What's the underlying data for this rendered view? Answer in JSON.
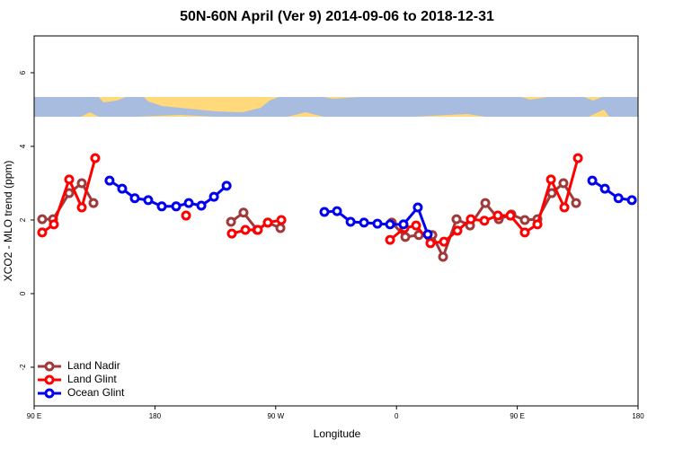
{
  "chart_data": {
    "type": "line",
    "title": "50N-60N April (Ver 9)   2014-09-06 to 2018-12-31",
    "x_label": "Longitude",
    "y_label": "XCO2 - MLO trend (ppm)",
    "xlim": [
      90,
      540
    ],
    "ylim": [
      -3.05,
      7
    ],
    "xticks": [
      {
        "value": 90,
        "label": "90 E"
      },
      {
        "value": 180,
        "label": "180"
      },
      {
        "value": 270,
        "label": "90 W"
      },
      {
        "value": 360,
        "label": "0"
      },
      {
        "value": 450,
        "label": "90 E"
      },
      {
        "value": 540,
        "label": "180"
      }
    ],
    "yticks": [
      -2,
      0,
      2,
      4,
      6
    ],
    "legend": "bottom-left",
    "series": [
      {
        "name": "Land Nadir",
        "color": "#a03a3a",
        "x": [
          96.0,
          104.1,
          116.1,
          125.5,
          134.2,
          null,
          236.7,
          246.0,
          256.1,
          264.1,
          273.5,
          null,
          356.5,
          366.6,
          376.6,
          386.7,
          394.7,
          404.7,
          414.8,
          426.2,
          436.2,
          445.6,
          455.6,
          465.0,
          475.7,
          484.4,
          493.8
        ],
        "values": [
          2.02,
          2.02,
          2.73,
          3.0,
          2.46,
          null,
          1.95,
          2.2,
          1.73,
          1.93,
          1.78,
          null,
          1.93,
          1.54,
          1.59,
          1.59,
          1.0,
          2.02,
          1.85,
          2.46,
          2.02,
          2.15,
          2.0,
          2.02,
          2.73,
          3.0,
          2.46
        ]
      },
      {
        "name": "Land Glint",
        "color": "#ff0000",
        "x": [
          96.0,
          104.7,
          116.1,
          125.5,
          135.5,
          null,
          203.2,
          null,
          237.3,
          247.4,
          256.7,
          264.1,
          274.2,
          null,
          355.2,
          365.9,
          374.6,
          385.3,
          395.4,
          405.4,
          415.4,
          425.5,
          435.5,
          444.9,
          455.6,
          465.0,
          475.1,
          485.1,
          495.2
        ],
        "values": [
          1.66,
          1.88,
          3.1,
          2.34,
          3.68,
          null,
          2.12,
          null,
          1.63,
          1.73,
          1.73,
          1.93,
          2.0,
          null,
          1.46,
          1.78,
          1.85,
          1.37,
          1.41,
          1.71,
          2.02,
          1.98,
          2.12,
          2.12,
          1.66,
          1.88,
          3.1,
          2.34,
          3.68
        ]
      },
      {
        "name": "Ocean Glint",
        "color": "#0000ee",
        "x": [
          146.2,
          155.6,
          165.0,
          175.0,
          185.1,
          195.8,
          205.2,
          214.6,
          224.0,
          233.4,
          null,
          306.3,
          315.7,
          325.8,
          335.8,
          345.8,
          355.2,
          365.2,
          375.9,
          383.3,
          null,
          505.9,
          515.3,
          525.4,
          535.4
        ],
        "values": [
          3.07,
          2.85,
          2.59,
          2.54,
          2.37,
          2.37,
          2.46,
          2.39,
          2.63,
          2.93,
          null,
          2.22,
          2.24,
          1.95,
          1.93,
          1.9,
          1.88,
          1.88,
          2.34,
          1.61,
          null,
          3.07,
          2.85,
          2.59,
          2.54
        ]
      }
    ]
  }
}
